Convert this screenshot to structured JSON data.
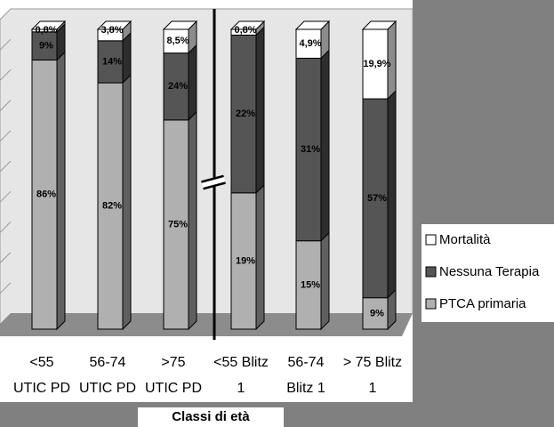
{
  "chart_data": {
    "type": "bar",
    "stack": "percent",
    "x_label": "Classi di età",
    "categories": [
      [
        "<55",
        "UTIC PD"
      ],
      [
        "56-74",
        "UTIC PD"
      ],
      [
        ">75",
        "UTIC PD"
      ],
      [
        "<55 Blitz",
        "1"
      ],
      [
        "56-74",
        "Blitz 1"
      ],
      [
        "> 75 Blitz",
        "1"
      ]
    ],
    "series": [
      {
        "name": "PTCA primaria",
        "color": "#b0b0b0",
        "values": [
          86,
          82,
          75,
          19,
          15,
          9
        ],
        "value_labels": [
          "86%",
          "82%",
          "75%",
          "19%",
          "15%",
          "9%"
        ]
      },
      {
        "name": "Nessuna Terapia",
        "color": "#555555",
        "values": [
          9,
          14,
          24,
          22,
          31,
          57
        ],
        "value_labels": [
          "9%",
          "14%",
          "24%",
          "22%",
          "31%",
          "57%"
        ]
      },
      {
        "name": "Mortalità",
        "color": "#ffffff",
        "values": [
          0.8,
          3.8,
          8.5,
          0.8,
          4.9,
          19.9
        ],
        "value_labels": [
          "0,8%",
          "3,8%",
          "8,5%",
          "0,8%",
          "4,9%",
          "19,9%"
        ]
      }
    ]
  }
}
